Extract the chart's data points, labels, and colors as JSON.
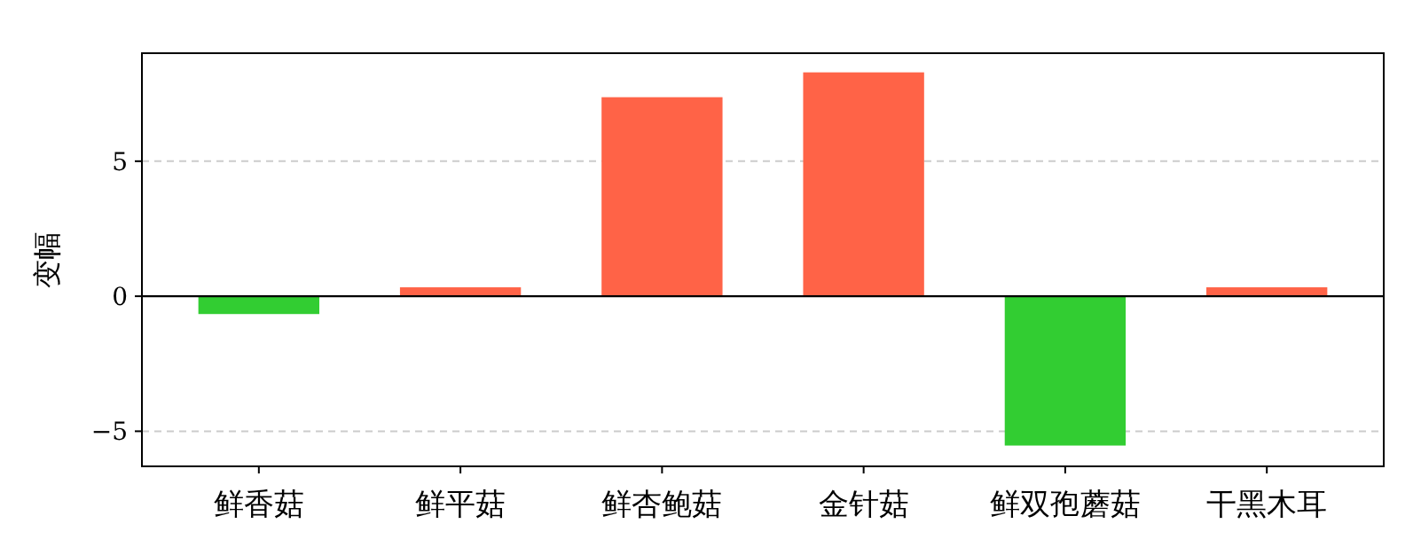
{
  "chart_data": {
    "type": "bar",
    "ylabel": "变幅",
    "categories": [
      "鲜香菇",
      "鲜平菇",
      "鲜杏鲍菇",
      "金针菇",
      "鲜双孢蘑菇",
      "干黑木耳"
    ],
    "values": [
      -0.66,
      0.33,
      7.37,
      8.29,
      -5.53,
      0.33
    ],
    "colors": [
      "#32cd32",
      "#ff6347",
      "#ff6347",
      "#ff6347",
      "#32cd32",
      "#ff6347"
    ],
    "ylim": [
      -6.3,
      9.0
    ],
    "yticks": [
      -5,
      0,
      5
    ],
    "grid": "y",
    "ref_lines": [
      {
        "axis": "y",
        "value": 0,
        "color": "#000000",
        "line_style": "solid"
      }
    ]
  }
}
